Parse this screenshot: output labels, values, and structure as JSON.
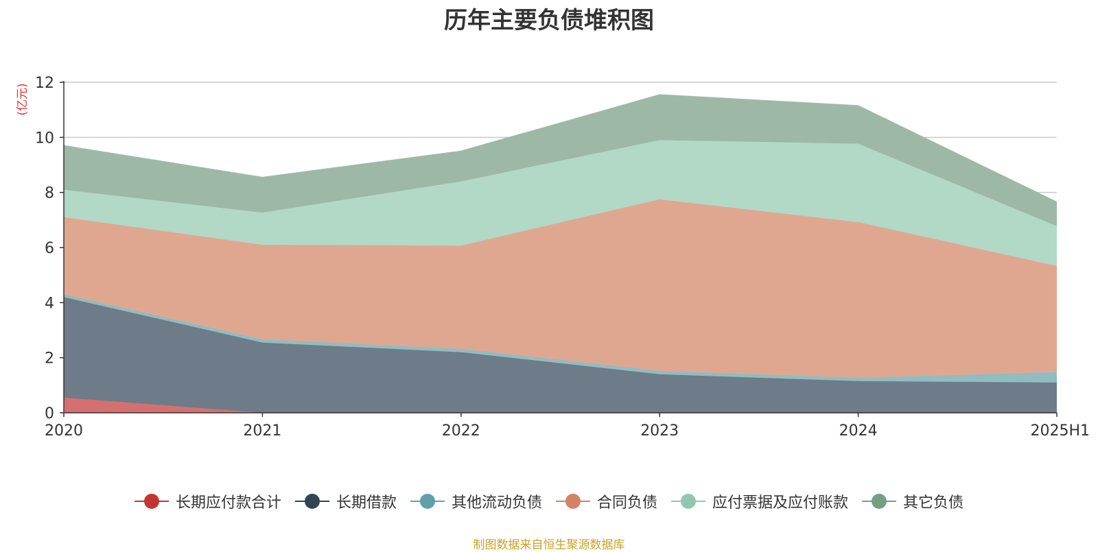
{
  "chart_data": {
    "type": "area",
    "stacked": true,
    "title": "历年主要负债堆积图",
    "ylabel": "(亿元)",
    "xlabel": "",
    "categories": [
      "2020",
      "2021",
      "2022",
      "2023",
      "2024",
      "2025H1"
    ],
    "ylim": [
      0,
      12
    ],
    "yticks": [
      0,
      2,
      4,
      6,
      8,
      10,
      12
    ],
    "grid": true,
    "legend_position": "bottom",
    "series": [
      {
        "name": "长期应付款合计",
        "values": [
          0.55,
          0,
          0,
          0,
          0,
          0
        ],
        "color": "#c23531",
        "fill": "#d67070"
      },
      {
        "name": "长期借款",
        "values": [
          3.65,
          2.55,
          2.2,
          1.4,
          1.15,
          1.1
        ],
        "color": "#2f4554",
        "fill": "#6d7c88"
      },
      {
        "name": "其他流动负债",
        "values": [
          0.1,
          0.12,
          0.12,
          0.12,
          0.12,
          0.38
        ],
        "color": "#61a0a8",
        "fill": "#90bcc2"
      },
      {
        "name": "合同负债",
        "values": [
          2.8,
          3.43,
          3.75,
          6.23,
          5.65,
          3.85
        ],
        "color": "#d48265",
        "fill": "#e0a790"
      },
      {
        "name": "应付票据及应付账款",
        "values": [
          1.0,
          1.17,
          2.33,
          2.15,
          2.85,
          1.45
        ],
        "color": "#91c7ae",
        "fill": "#b2d8c6"
      },
      {
        "name": "其它负债",
        "values": [
          1.6,
          1.28,
          1.1,
          1.65,
          1.38,
          0.87
        ],
        "color": "#749f83",
        "fill": "#9db8a6"
      }
    ]
  },
  "source_note": "制图数据来自恒生聚源数据库"
}
